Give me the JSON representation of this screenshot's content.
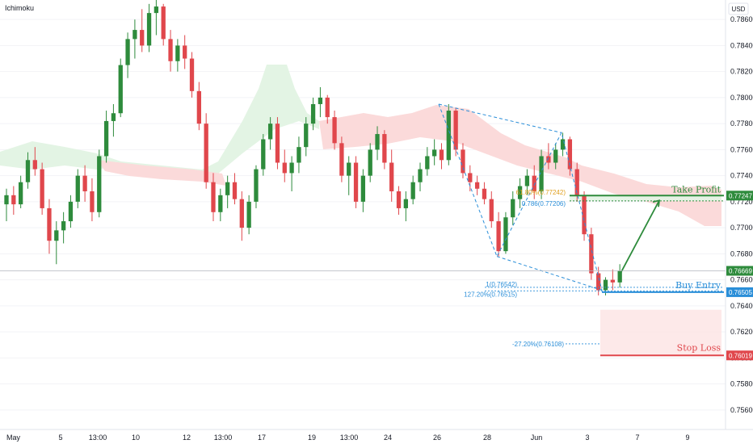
{
  "indicator_label": "Ichimoku",
  "currency_label": "USD",
  "colors": {
    "up": "#2e8b3c",
    "down": "#e0474c",
    "cloud_bull": "#e3f4e4",
    "cloud_bear": "#fbdada",
    "fib": "#2a8ed8",
    "fib_gold": "#e0a020",
    "take_profit": "#2e8b3c",
    "buy_entry": "#2a8ed8",
    "stop_loss": "#e0474c",
    "current": "#2e8b3c"
  },
  "chart_data": {
    "type": "candlestick",
    "title": "",
    "indicator": "Ichimoku",
    "currency": "USD",
    "ylim": [
      0.7545,
      0.7875
    ],
    "y_ticks": [
      "0.78600",
      "0.78400",
      "0.78200",
      "0.78000",
      "0.77800",
      "0.77600",
      "0.77400",
      "0.77200",
      "0.77000",
      "0.76800",
      "0.76600",
      "0.76400",
      "0.76200",
      "0.76000",
      "0.75800",
      "0.75600"
    ],
    "x_ticks": [
      "May",
      "5",
      "13:00",
      "10",
      "12",
      "13:00",
      "17",
      "19",
      "13:00",
      "24",
      "26",
      "28",
      "Jun",
      "3",
      "7",
      "9"
    ],
    "levels": {
      "take_profit": {
        "label": "Take Profit",
        "value": "0.77247",
        "y": 0.77247
      },
      "buy_entry": {
        "label": "Buy Entry",
        "value": "0.76505",
        "y": 0.76505
      },
      "stop_loss": {
        "label": "Stop Loss",
        "value": "0.76019",
        "y": 0.76019
      },
      "current_price": {
        "value": "0.76669",
        "y": 0.76669
      }
    },
    "fib_labels": {
      "fib_618": "61.80%(0.77242)",
      "fib_786": "0.786(0.77206)",
      "fib_1": "1(0.76542)",
      "fib_1272": "127.20%(0.76515)",
      "fib_neg272": "-27.20%(0.76108)"
    },
    "harmonic_pattern_points": [
      0.7795,
      0.7678,
      0.7773,
      0.7652
    ],
    "projection_target": 0.7721,
    "candles": [
      [
        0.7718,
        0.773,
        0.7705,
        0.7725
      ],
      [
        0.7725,
        0.7732,
        0.771,
        0.7718
      ],
      [
        0.7718,
        0.774,
        0.7715,
        0.7735
      ],
      [
        0.7735,
        0.7758,
        0.773,
        0.7752
      ],
      [
        0.7752,
        0.7762,
        0.774,
        0.7745
      ],
      [
        0.7745,
        0.775,
        0.771,
        0.7715
      ],
      [
        0.7715,
        0.7722,
        0.768,
        0.769
      ],
      [
        0.769,
        0.7705,
        0.7672,
        0.7698
      ],
      [
        0.7698,
        0.7712,
        0.7688,
        0.7705
      ],
      [
        0.7705,
        0.7725,
        0.77,
        0.772
      ],
      [
        0.772,
        0.7745,
        0.7715,
        0.774
      ],
      [
        0.774,
        0.7748,
        0.772,
        0.7728
      ],
      [
        0.7728,
        0.7738,
        0.7705,
        0.7712
      ],
      [
        0.7712,
        0.776,
        0.7708,
        0.7755
      ],
      [
        0.7755,
        0.779,
        0.775,
        0.7782
      ],
      [
        0.7782,
        0.7795,
        0.777,
        0.7788
      ],
      [
        0.7788,
        0.783,
        0.7785,
        0.7825
      ],
      [
        0.7825,
        0.785,
        0.7815,
        0.7845
      ],
      [
        0.7845,
        0.786,
        0.783,
        0.7852
      ],
      [
        0.7852,
        0.7868,
        0.7835,
        0.784
      ],
      [
        0.784,
        0.7872,
        0.7835,
        0.7865
      ],
      [
        0.7865,
        0.7875,
        0.7848,
        0.787
      ],
      [
        0.787,
        0.7872,
        0.784,
        0.7845
      ],
      [
        0.7845,
        0.7852,
        0.782,
        0.7828
      ],
      [
        0.7828,
        0.7845,
        0.782,
        0.784
      ],
      [
        0.784,
        0.7848,
        0.7822,
        0.783
      ],
      [
        0.783,
        0.7835,
        0.78,
        0.7805
      ],
      [
        0.7805,
        0.7812,
        0.7775,
        0.778
      ],
      [
        0.778,
        0.7788,
        0.773,
        0.7735
      ],
      [
        0.7735,
        0.7742,
        0.7705,
        0.7712
      ],
      [
        0.7712,
        0.773,
        0.7705,
        0.7725
      ],
      [
        0.7725,
        0.774,
        0.7715,
        0.7735
      ],
      [
        0.7735,
        0.7742,
        0.7718,
        0.7722
      ],
      [
        0.7722,
        0.7728,
        0.769,
        0.77
      ],
      [
        0.77,
        0.7725,
        0.7695,
        0.772
      ],
      [
        0.772,
        0.7748,
        0.7715,
        0.7745
      ],
      [
        0.7745,
        0.7772,
        0.774,
        0.7768
      ],
      [
        0.7768,
        0.7785,
        0.776,
        0.778
      ],
      [
        0.778,
        0.7785,
        0.7745,
        0.775
      ],
      [
        0.775,
        0.776,
        0.7735,
        0.7742
      ],
      [
        0.7742,
        0.7755,
        0.7728,
        0.775
      ],
      [
        0.775,
        0.777,
        0.7742,
        0.7762
      ],
      [
        0.7762,
        0.7785,
        0.7755,
        0.778
      ],
      [
        0.778,
        0.78,
        0.7775,
        0.7795
      ],
      [
        0.7795,
        0.7808,
        0.7785,
        0.78
      ],
      [
        0.78,
        0.7802,
        0.778,
        0.7785
      ],
      [
        0.7785,
        0.779,
        0.776,
        0.7765
      ],
      [
        0.7765,
        0.777,
        0.7735,
        0.774
      ],
      [
        0.774,
        0.7755,
        0.7725,
        0.775
      ],
      [
        0.775,
        0.7755,
        0.7715,
        0.772
      ],
      [
        0.772,
        0.7745,
        0.7712,
        0.774
      ],
      [
        0.774,
        0.7765,
        0.7735,
        0.776
      ],
      [
        0.776,
        0.7778,
        0.7752,
        0.7772
      ],
      [
        0.7772,
        0.7775,
        0.7745,
        0.775
      ],
      [
        0.775,
        0.776,
        0.772,
        0.7728
      ],
      [
        0.7728,
        0.7732,
        0.771,
        0.7715
      ],
      [
        0.7715,
        0.7728,
        0.7705,
        0.7722
      ],
      [
        0.7722,
        0.774,
        0.7718,
        0.7735
      ],
      [
        0.7735,
        0.775,
        0.7728,
        0.7745
      ],
      [
        0.7745,
        0.7762,
        0.774,
        0.7755
      ],
      [
        0.7755,
        0.7768,
        0.7748,
        0.776
      ],
      [
        0.776,
        0.7765,
        0.7745,
        0.7752
      ],
      [
        0.7752,
        0.7795,
        0.7748,
        0.779
      ],
      [
        0.779,
        0.7792,
        0.7755,
        0.776
      ],
      [
        0.776,
        0.7765,
        0.7738,
        0.7742
      ],
      [
        0.7742,
        0.7748,
        0.7728,
        0.7735
      ],
      [
        0.7735,
        0.774,
        0.7725,
        0.773
      ],
      [
        0.773,
        0.7735,
        0.7718,
        0.7722
      ],
      [
        0.7722,
        0.7728,
        0.77,
        0.7705
      ],
      [
        0.7705,
        0.7712,
        0.7678,
        0.7682
      ],
      [
        0.7682,
        0.7712,
        0.768,
        0.7708
      ],
      [
        0.7708,
        0.7728,
        0.7702,
        0.7722
      ],
      [
        0.7722,
        0.7738,
        0.7715,
        0.7732
      ],
      [
        0.7732,
        0.7745,
        0.7725,
        0.774
      ],
      [
        0.774,
        0.7748,
        0.7722,
        0.7728
      ],
      [
        0.7728,
        0.776,
        0.7722,
        0.7755
      ],
      [
        0.7755,
        0.7765,
        0.7745,
        0.775
      ],
      [
        0.775,
        0.7765,
        0.7745,
        0.776
      ],
      [
        0.776,
        0.7773,
        0.7755,
        0.7768
      ],
      [
        0.7768,
        0.777,
        0.774,
        0.7745
      ],
      [
        0.7745,
        0.775,
        0.772,
        0.7725
      ],
      [
        0.7725,
        0.7728,
        0.769,
        0.7695
      ],
      [
        0.7695,
        0.77,
        0.766,
        0.7665
      ],
      [
        0.7665,
        0.767,
        0.7648,
        0.7652
      ],
      [
        0.7652,
        0.7662,
        0.7648,
        0.766
      ],
      [
        0.766,
        0.7668,
        0.7652,
        0.7658
      ],
      [
        0.7658,
        0.7672,
        0.7654,
        0.7667
      ]
    ]
  }
}
